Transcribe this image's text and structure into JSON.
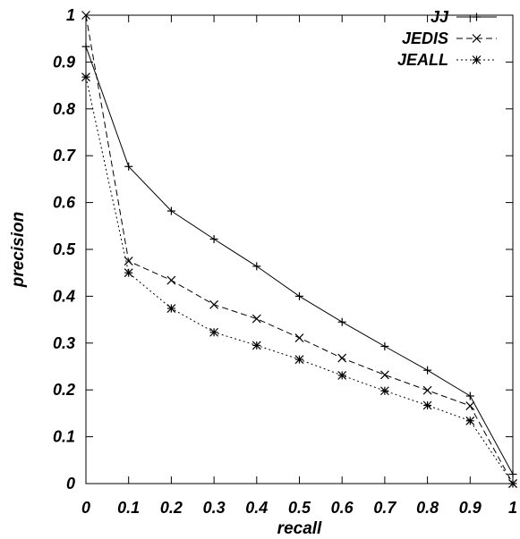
{
  "chart_data": {
    "type": "line",
    "title": "",
    "xlabel": "recall",
    "ylabel": "precision",
    "xlim": [
      0,
      1
    ],
    "ylim": [
      0,
      1
    ],
    "x_ticks": [
      "0",
      "0.1",
      "0.2",
      "0.3",
      "0.4",
      "0.5",
      "0.6",
      "0.7",
      "0.8",
      "0.9",
      "1"
    ],
    "y_ticks": [
      "0",
      "0.1",
      "0.2",
      "0.3",
      "0.4",
      "0.5",
      "0.6",
      "0.7",
      "0.8",
      "0.9",
      "1"
    ],
    "grid": false,
    "legend_position": "top-right",
    "x": [
      0,
      0.1,
      0.2,
      0.3,
      0.4,
      0.5,
      0.6,
      0.7,
      0.8,
      0.9,
      1
    ],
    "series": [
      {
        "name": "JJ",
        "marker": "plus",
        "line_style": "solid",
        "color": "#000000",
        "values": [
          0.933,
          0.677,
          0.582,
          0.522,
          0.464,
          0.4,
          0.345,
          0.293,
          0.242,
          0.187,
          0.02
        ]
      },
      {
        "name": "JEDIS",
        "marker": "cross",
        "line_style": "dashed",
        "color": "#000000",
        "values": [
          1.0,
          0.475,
          0.434,
          0.382,
          0.352,
          0.311,
          0.268,
          0.232,
          0.199,
          0.166,
          0.0
        ]
      },
      {
        "name": "JEALL",
        "marker": "asterisk",
        "line_style": "dotted",
        "color": "#000000",
        "values": [
          0.868,
          0.45,
          0.374,
          0.323,
          0.295,
          0.265,
          0.231,
          0.198,
          0.167,
          0.134,
          0.0
        ]
      }
    ]
  }
}
